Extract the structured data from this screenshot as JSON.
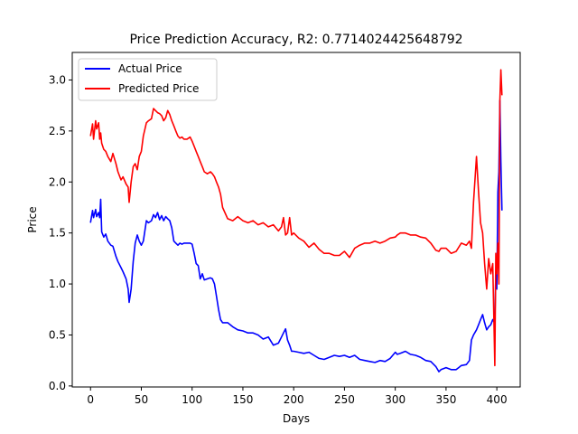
{
  "chart_data": {
    "type": "line",
    "title": "Price Prediction Accuracy, R2: 0.7714024425648792",
    "xlabel": "Days",
    "ylabel": "Price",
    "xlim": [
      -18,
      423
    ],
    "ylim": [
      -0.01,
      3.27
    ],
    "xticks": [
      "0",
      "50",
      "100",
      "150",
      "200",
      "250",
      "300",
      "350",
      "400"
    ],
    "yticks": [
      "0.0",
      "0.5",
      "1.0",
      "1.5",
      "2.0",
      "2.5",
      "3.0"
    ],
    "legend_position": "upper-left",
    "grid": false,
    "series": [
      {
        "name": "Actual Price",
        "color": "#0000ff",
        "x": [
          0,
          2,
          3,
          5,
          6,
          8,
          9,
          10,
          11,
          13,
          15,
          17,
          20,
          22,
          25,
          27,
          30,
          32,
          35,
          37,
          38,
          40,
          42,
          44,
          46,
          48,
          50,
          52,
          55,
          57,
          60,
          62,
          64,
          66,
          68,
          70,
          72,
          74,
          76,
          78,
          80,
          82,
          84,
          86,
          88,
          90,
          92,
          95,
          98,
          100,
          102,
          104,
          106,
          108,
          110,
          112,
          115,
          118,
          120,
          122,
          124,
          126,
          128,
          130,
          135,
          140,
          145,
          150,
          155,
          160,
          165,
          170,
          175,
          180,
          185,
          188,
          190,
          192,
          194,
          196,
          198,
          200,
          205,
          210,
          215,
          220,
          225,
          230,
          235,
          240,
          245,
          250,
          255,
          260,
          265,
          270,
          275,
          280,
          285,
          290,
          295,
          300,
          302,
          305,
          310,
          315,
          320,
          325,
          330,
          335,
          340,
          343,
          345,
          350,
          355,
          360,
          365,
          370,
          373,
          375,
          377,
          380,
          382,
          384,
          386,
          388,
          390,
          392,
          394,
          396,
          398,
          399,
          400,
          401,
          402,
          403,
          404,
          405
        ],
        "y": [
          1.6,
          1.72,
          1.65,
          1.73,
          1.66,
          1.7,
          1.65,
          1.83,
          1.51,
          1.46,
          1.49,
          1.42,
          1.38,
          1.37,
          1.27,
          1.22,
          1.16,
          1.12,
          1.05,
          0.95,
          0.82,
          0.95,
          1.22,
          1.4,
          1.48,
          1.42,
          1.38,
          1.42,
          1.62,
          1.6,
          1.62,
          1.68,
          1.65,
          1.7,
          1.63,
          1.67,
          1.62,
          1.66,
          1.64,
          1.62,
          1.55,
          1.42,
          1.4,
          1.38,
          1.4,
          1.39,
          1.4,
          1.4,
          1.4,
          1.39,
          1.3,
          1.2,
          1.18,
          1.05,
          1.1,
          1.04,
          1.05,
          1.06,
          1.05,
          1.0,
          0.88,
          0.75,
          0.65,
          0.62,
          0.62,
          0.58,
          0.55,
          0.54,
          0.52,
          0.52,
          0.5,
          0.46,
          0.48,
          0.4,
          0.42,
          0.48,
          0.52,
          0.56,
          0.45,
          0.4,
          0.34,
          0.34,
          0.33,
          0.32,
          0.33,
          0.3,
          0.27,
          0.26,
          0.28,
          0.3,
          0.29,
          0.3,
          0.28,
          0.3,
          0.26,
          0.25,
          0.24,
          0.23,
          0.25,
          0.24,
          0.27,
          0.33,
          0.31,
          0.32,
          0.34,
          0.31,
          0.3,
          0.28,
          0.25,
          0.24,
          0.19,
          0.14,
          0.16,
          0.18,
          0.16,
          0.16,
          0.2,
          0.21,
          0.25,
          0.45,
          0.5,
          0.55,
          0.6,
          0.65,
          0.7,
          0.62,
          0.55,
          0.58,
          0.6,
          0.65,
          0.62,
          1.1,
          0.95,
          1.9,
          2.1,
          2.8,
          2.2,
          1.72
        ]
      },
      {
        "name": "Predicted Price",
        "color": "#ff0000",
        "x": [
          0,
          2,
          3,
          5,
          6,
          8,
          9,
          10,
          11,
          13,
          15,
          17,
          20,
          22,
          25,
          27,
          30,
          32,
          35,
          37,
          38,
          40,
          42,
          44,
          46,
          48,
          50,
          52,
          55,
          57,
          60,
          62,
          64,
          66,
          68,
          70,
          72,
          74,
          76,
          78,
          80,
          82,
          84,
          86,
          88,
          90,
          92,
          95,
          98,
          100,
          102,
          104,
          106,
          108,
          110,
          112,
          115,
          118,
          120,
          122,
          124,
          126,
          128,
          130,
          135,
          140,
          145,
          150,
          155,
          160,
          165,
          170,
          175,
          180,
          185,
          188,
          190,
          192,
          194,
          196,
          198,
          200,
          205,
          210,
          215,
          220,
          225,
          230,
          235,
          240,
          245,
          250,
          255,
          260,
          265,
          270,
          275,
          280,
          285,
          290,
          295,
          300,
          302,
          305,
          310,
          315,
          320,
          325,
          330,
          335,
          340,
          343,
          345,
          350,
          355,
          360,
          365,
          370,
          373,
          375,
          377,
          380,
          382,
          384,
          386,
          388,
          390,
          392,
          394,
          396,
          398,
          399,
          400,
          401,
          402,
          403,
          404,
          405
        ],
        "y": [
          2.45,
          2.57,
          2.42,
          2.6,
          2.52,
          2.58,
          2.42,
          2.48,
          2.38,
          2.32,
          2.3,
          2.25,
          2.2,
          2.28,
          2.18,
          2.1,
          2.02,
          2.05,
          1.98,
          1.95,
          1.8,
          2.0,
          2.15,
          2.18,
          2.12,
          2.25,
          2.3,
          2.45,
          2.58,
          2.6,
          2.62,
          2.72,
          2.7,
          2.68,
          2.67,
          2.65,
          2.6,
          2.63,
          2.7,
          2.66,
          2.6,
          2.55,
          2.5,
          2.45,
          2.43,
          2.44,
          2.42,
          2.42,
          2.44,
          2.4,
          2.35,
          2.3,
          2.25,
          2.2,
          2.15,
          2.1,
          2.08,
          2.1,
          2.08,
          2.05,
          2.0,
          1.95,
          1.88,
          1.75,
          1.64,
          1.62,
          1.66,
          1.62,
          1.6,
          1.62,
          1.58,
          1.6,
          1.56,
          1.58,
          1.52,
          1.56,
          1.65,
          1.48,
          1.5,
          1.65,
          1.48,
          1.5,
          1.45,
          1.42,
          1.36,
          1.4,
          1.34,
          1.3,
          1.3,
          1.28,
          1.28,
          1.32,
          1.26,
          1.35,
          1.38,
          1.4,
          1.4,
          1.42,
          1.4,
          1.42,
          1.45,
          1.46,
          1.48,
          1.5,
          1.5,
          1.48,
          1.48,
          1.46,
          1.45,
          1.4,
          1.33,
          1.32,
          1.35,
          1.35,
          1.3,
          1.32,
          1.4,
          1.38,
          1.42,
          1.35,
          1.8,
          2.25,
          1.9,
          1.6,
          1.5,
          1.2,
          0.95,
          1.25,
          1.1,
          1.2,
          0.2,
          1.3,
          1.1,
          1.4,
          1.0,
          2.8,
          3.1,
          2.85
        ]
      }
    ]
  }
}
